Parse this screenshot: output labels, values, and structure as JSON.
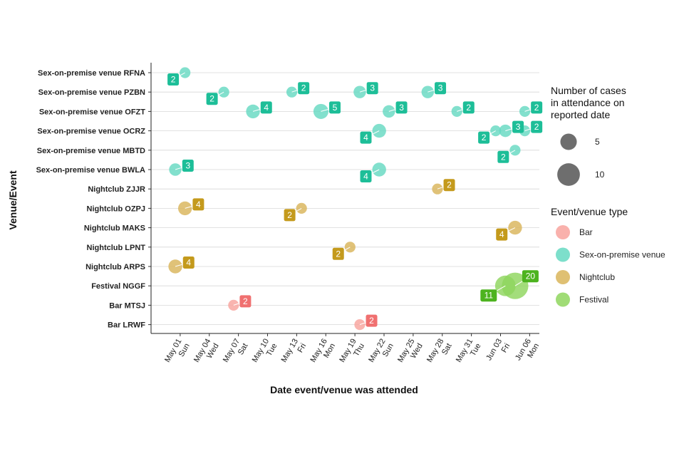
{
  "chart_data": {
    "type": "scatter",
    "xlabel": "Date event/venue was attended",
    "ylabel": "Venue/Event",
    "x_ticks": [
      {
        "date": "2022-05-01",
        "line1": "May 01",
        "line2": "Sun"
      },
      {
        "date": "2022-05-04",
        "line1": "May 04",
        "line2": "Wed"
      },
      {
        "date": "2022-05-07",
        "line1": "May 07",
        "line2": "Sat"
      },
      {
        "date": "2022-05-10",
        "line1": "May 10",
        "line2": "Tue"
      },
      {
        "date": "2022-05-13",
        "line1": "May 13",
        "line2": "Fri"
      },
      {
        "date": "2022-05-16",
        "line1": "May 16",
        "line2": "Mon"
      },
      {
        "date": "2022-05-19",
        "line1": "May 19",
        "line2": "Thu"
      },
      {
        "date": "2022-05-22",
        "line1": "May 22",
        "line2": "Sun"
      },
      {
        "date": "2022-05-25",
        "line1": "May 25",
        "line2": "Wed"
      },
      {
        "date": "2022-05-28",
        "line1": "May 28",
        "line2": "Sat"
      },
      {
        "date": "2022-05-31",
        "line1": "May 31",
        "line2": "Tue"
      },
      {
        "date": "2022-06-03",
        "line1": "Jun 03",
        "line2": "Fri"
      },
      {
        "date": "2022-06-06",
        "line1": "Jun 06",
        "line2": "Mon"
      }
    ],
    "xlim": [
      "2022-04-28",
      "2022-06-07"
    ],
    "venues": [
      "Sex-on-premise venue RFNA",
      "Sex-on-premise venue PZBN",
      "Sex-on-premise venue OFZT",
      "Sex-on-premise venue OCRZ",
      "Sex-on-premise venue MBTD",
      "Sex-on-premise venue BWLA",
      "Nightclub ZJJR",
      "Nightclub OZPJ",
      "Nightclub MAKS",
      "Nightclub LPNT",
      "Nightclub ARPS",
      "Festival NGGF",
      "Bar MTSJ",
      "Bar LRWF"
    ],
    "types": [
      {
        "name": "Bar",
        "color": "#F8A39E"
      },
      {
        "name": "Sex-on-premise venue",
        "color": "#66D9C2"
      },
      {
        "name": "Nightclub",
        "color": "#D9B55A"
      },
      {
        "name": "Festival",
        "color": "#8FD65E"
      }
    ],
    "label_colors": {
      "Bar": "#F07070",
      "Sex-on-premise venue": "#1DBE98",
      "Nightclub": "#C49A1C",
      "Festival": "#4DB31F"
    },
    "size_legend": {
      "title_lines": [
        "Number of cases",
        " in attendance on",
        " reported date"
      ],
      "values": [
        5,
        10
      ]
    },
    "type_legend_title": "Event/venue type",
    "points": [
      {
        "venue": "Sex-on-premise venue RFNA",
        "date": "2022-05-01",
        "cases": 2,
        "type": "Sex-on-premise venue",
        "label": "2",
        "label_side": "left"
      },
      {
        "venue": "Sex-on-premise venue PZBN",
        "date": "2022-05-05",
        "cases": 2,
        "type": "Sex-on-premise venue",
        "label": "2",
        "label_side": "left"
      },
      {
        "venue": "Sex-on-premise venue PZBN",
        "date": "2022-05-12",
        "cases": 2,
        "type": "Sex-on-premise venue",
        "label": "2",
        "label_side": "right"
      },
      {
        "venue": "Sex-on-premise venue PZBN",
        "date": "2022-05-19",
        "cases": 3,
        "type": "Sex-on-premise venue",
        "label": "3",
        "label_side": "right"
      },
      {
        "venue": "Sex-on-premise venue PZBN",
        "date": "2022-05-26",
        "cases": 3,
        "type": "Sex-on-premise venue",
        "label": "3",
        "label_side": "right"
      },
      {
        "venue": "Sex-on-premise venue OFZT",
        "date": "2022-05-08",
        "cases": 4,
        "type": "Sex-on-premise venue",
        "label": "4",
        "label_side": "right"
      },
      {
        "venue": "Sex-on-premise venue OFZT",
        "date": "2022-05-15",
        "cases": 5,
        "type": "Sex-on-premise venue",
        "label": "5",
        "label_side": "right"
      },
      {
        "venue": "Sex-on-premise venue OFZT",
        "date": "2022-05-22",
        "cases": 3,
        "type": "Sex-on-premise venue",
        "label": "3",
        "label_side": "right"
      },
      {
        "venue": "Sex-on-premise venue OFZT",
        "date": "2022-05-29",
        "cases": 2,
        "type": "Sex-on-premise venue",
        "label": "2",
        "label_side": "right"
      },
      {
        "venue": "Sex-on-premise venue OFZT",
        "date": "2022-06-05",
        "cases": 2,
        "type": "Sex-on-premise venue",
        "label": "2",
        "label_side": "right"
      },
      {
        "venue": "Sex-on-premise venue OCRZ",
        "date": "2022-05-21",
        "cases": 4,
        "type": "Sex-on-premise venue",
        "label": "4",
        "label_side": "left"
      },
      {
        "venue": "Sex-on-premise venue OCRZ",
        "date": "2022-06-02",
        "cases": 2,
        "type": "Sex-on-premise venue",
        "label": "2",
        "label_side": "left"
      },
      {
        "venue": "Sex-on-premise venue OCRZ",
        "date": "2022-06-03",
        "cases": 3,
        "type": "Sex-on-premise venue",
        "label": "3",
        "label_side": "right"
      },
      {
        "venue": "Sex-on-premise venue OCRZ",
        "date": "2022-06-05",
        "cases": 2,
        "type": "Sex-on-premise venue",
        "label": "2",
        "label_side": "right"
      },
      {
        "venue": "Sex-on-premise venue MBTD",
        "date": "2022-06-04",
        "cases": 2,
        "type": "Sex-on-premise venue",
        "label": "2",
        "label_side": "left"
      },
      {
        "venue": "Sex-on-premise venue BWLA",
        "date": "2022-04-30",
        "cases": 3,
        "type": "Sex-on-premise venue",
        "label": "3",
        "label_side": "right"
      },
      {
        "venue": "Sex-on-premise venue BWLA",
        "date": "2022-05-21",
        "cases": 4,
        "type": "Sex-on-premise venue",
        "label": "4",
        "label_side": "left"
      },
      {
        "venue": "Nightclub ZJJR",
        "date": "2022-05-27",
        "cases": 2,
        "type": "Nightclub",
        "label": "2",
        "label_side": "right"
      },
      {
        "venue": "Nightclub OZPJ",
        "date": "2022-05-01",
        "cases": 4,
        "type": "Nightclub",
        "label": "4",
        "label_side": "right"
      },
      {
        "venue": "Nightclub OZPJ",
        "date": "2022-05-13",
        "cases": 2,
        "type": "Nightclub",
        "label": "2",
        "label_side": "left"
      },
      {
        "venue": "Nightclub MAKS",
        "date": "2022-06-04",
        "cases": 4,
        "type": "Nightclub",
        "label": "4",
        "label_side": "left"
      },
      {
        "venue": "Nightclub LPNT",
        "date": "2022-05-18",
        "cases": 2,
        "type": "Nightclub",
        "label": "2",
        "label_side": "left"
      },
      {
        "venue": "Nightclub ARPS",
        "date": "2022-04-30",
        "cases": 4,
        "type": "Nightclub",
        "label": "4",
        "label_side": "right"
      },
      {
        "venue": "Festival NGGF",
        "date": "2022-06-03",
        "cases": 11,
        "type": "Festival",
        "label": "11",
        "label_side": "left"
      },
      {
        "venue": "Festival NGGF",
        "date": "2022-06-04",
        "cases": 20,
        "type": "Festival",
        "label": "20",
        "label_side": "right"
      },
      {
        "venue": "Bar MTSJ",
        "date": "2022-05-06",
        "cases": 2,
        "type": "Bar",
        "label": "2",
        "label_side": "right"
      },
      {
        "venue": "Bar LRWF",
        "date": "2022-05-19",
        "cases": 2,
        "type": "Bar",
        "label": "2",
        "label_side": "right"
      }
    ]
  }
}
